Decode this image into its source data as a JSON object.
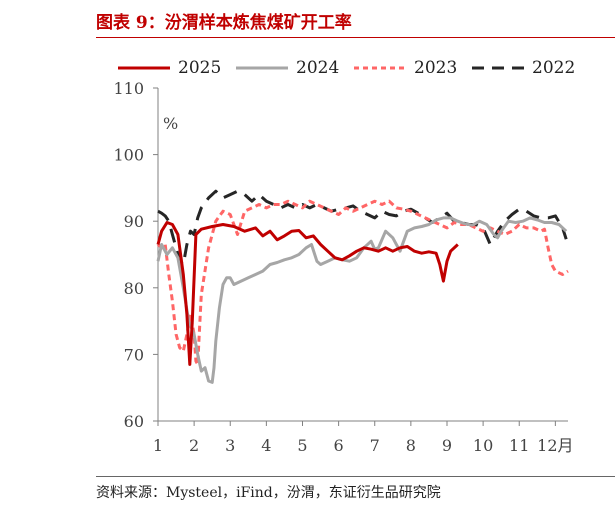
{
  "figure": {
    "title": "图表 9：汾渭样本炼焦煤矿开工率",
    "source": "资料来源：Mysteel，iFind，汾渭，东证衍生品研究院"
  },
  "chart_data": {
    "type": "line",
    "unit_label": "%",
    "ylim": [
      60,
      110
    ],
    "y_ticks": [
      60,
      70,
      80,
      90,
      100,
      110
    ],
    "xlim": [
      1,
      12.35
    ],
    "x_ticks": [
      1,
      2,
      3,
      4,
      5,
      6,
      7,
      8,
      9,
      10,
      11,
      12
    ],
    "x_tick_labels": [
      "1",
      "2",
      "3",
      "4",
      "5",
      "6",
      "7",
      "8",
      "9",
      "10",
      "11",
      "12月"
    ],
    "legend_position": "top",
    "grid": false,
    "series": [
      {
        "name": "2025",
        "color": "#c00000",
        "style": "solid",
        "x": [
          1.0,
          1.1,
          1.25,
          1.4,
          1.55,
          1.7,
          1.8,
          1.88,
          1.95,
          2.05,
          2.2,
          2.5,
          2.8,
          3.1,
          3.4,
          3.7,
          3.9,
          4.1,
          4.3,
          4.5,
          4.7,
          4.9,
          5.1,
          5.3,
          5.5,
          5.7,
          5.9,
          6.1,
          6.3,
          6.5,
          6.7,
          6.9,
          7.1,
          7.3,
          7.5,
          7.7,
          7.9,
          8.1,
          8.3,
          8.5,
          8.7,
          8.8,
          8.9,
          9.0,
          9.1,
          9.3
        ],
        "y": [
          86.5,
          88.5,
          89.8,
          89.5,
          88.0,
          82.0,
          76.0,
          68.5,
          75.0,
          88.0,
          88.8,
          89.2,
          89.5,
          89.2,
          88.5,
          89.0,
          87.8,
          88.5,
          87.2,
          87.8,
          88.5,
          88.6,
          87.5,
          87.8,
          86.5,
          85.5,
          84.5,
          84.2,
          84.8,
          85.5,
          86.0,
          85.8,
          85.5,
          86.0,
          85.5,
          86.0,
          86.2,
          85.5,
          85.2,
          85.4,
          85.2,
          83.5,
          81.0,
          84.0,
          85.5,
          86.5
        ]
      },
      {
        "name": "2024",
        "color": "#a6a6a6",
        "style": "solid",
        "x": [
          1.0,
          1.1,
          1.25,
          1.4,
          1.55,
          1.7,
          1.85,
          2.0,
          2.1,
          2.2,
          2.3,
          2.4,
          2.5,
          2.55,
          2.6,
          2.7,
          2.8,
          2.9,
          3.0,
          3.1,
          3.3,
          3.5,
          3.7,
          3.9,
          4.1,
          4.3,
          4.5,
          4.7,
          4.9,
          5.1,
          5.25,
          5.4,
          5.5,
          5.7,
          5.9,
          6.1,
          6.3,
          6.5,
          6.7,
          6.9,
          7.0,
          7.1,
          7.3,
          7.5,
          7.7,
          7.9,
          8.1,
          8.3,
          8.5,
          8.7,
          8.9,
          9.1,
          9.3,
          9.5,
          9.7,
          9.9,
          10.1,
          10.3,
          10.4,
          10.5,
          10.7,
          10.9,
          11.1,
          11.3,
          11.5,
          11.7,
          11.9,
          12.1,
          12.3
        ],
        "y": [
          84.0,
          86.5,
          85.0,
          86.0,
          84.5,
          80.0,
          75.0,
          73.0,
          70.0,
          67.5,
          68.0,
          66.0,
          65.8,
          68.0,
          72.0,
          77.0,
          80.5,
          81.5,
          81.5,
          80.5,
          81.0,
          81.5,
          82.0,
          82.5,
          83.5,
          83.8,
          84.2,
          84.5,
          85.0,
          86.0,
          86.5,
          84.0,
          83.5,
          84.0,
          84.5,
          84.2,
          84.0,
          84.5,
          86.0,
          87.0,
          85.8,
          86.0,
          88.5,
          87.5,
          85.5,
          88.5,
          89.0,
          89.2,
          89.5,
          90.2,
          90.5,
          90.5,
          90.0,
          89.6,
          89.4,
          90.0,
          89.5,
          88.0,
          87.5,
          88.5,
          90.0,
          89.8,
          90.0,
          90.5,
          90.2,
          89.8,
          89.8,
          89.5,
          88.5
        ]
      },
      {
        "name": "2023",
        "color": "#ff6666",
        "style": "dashed",
        "x": [
          1.0,
          1.1,
          1.2,
          1.3,
          1.4,
          1.5,
          1.6,
          1.7,
          1.8,
          1.9,
          2.0,
          2.05,
          2.1,
          2.2,
          2.4,
          2.6,
          2.8,
          3.0,
          3.2,
          3.4,
          3.6,
          3.8,
          4.0,
          4.2,
          4.4,
          4.6,
          4.8,
          5.0,
          5.2,
          5.4,
          5.6,
          5.8,
          6.0,
          6.2,
          6.4,
          6.6,
          6.8,
          7.0,
          7.2,
          7.4,
          7.6,
          7.8,
          8.0,
          8.2,
          8.4,
          8.6,
          8.8,
          9.0,
          9.2,
          9.4,
          9.6,
          9.8,
          10.0,
          10.2,
          10.4,
          10.6,
          10.8,
          11.0,
          11.2,
          11.4,
          11.6,
          11.7,
          11.8,
          11.9,
          12.0,
          12.2,
          12.35
        ],
        "y": [
          86.5,
          86.0,
          86.5,
          82.0,
          78.0,
          73.0,
          71.0,
          70.5,
          73.0,
          76.0,
          73.0,
          69.0,
          68.5,
          79.0,
          86.0,
          90.0,
          91.5,
          91.0,
          88.0,
          91.5,
          92.0,
          92.5,
          92.0,
          92.5,
          92.5,
          93.0,
          92.5,
          92.0,
          93.0,
          92.5,
          92.0,
          91.5,
          91.0,
          92.0,
          91.5,
          92.0,
          92.5,
          93.0,
          92.5,
          93.0,
          92.0,
          91.8,
          91.5,
          91.0,
          90.5,
          90.0,
          89.5,
          89.0,
          89.8,
          89.5,
          89.5,
          89.0,
          88.5,
          89.0,
          88.5,
          88.0,
          88.5,
          89.5,
          89.0,
          89.0,
          88.5,
          88.8,
          86.0,
          83.5,
          82.5,
          82.0,
          82.5
        ]
      },
      {
        "name": "2022",
        "color": "#262626",
        "style": "dashed",
        "x": [
          1.0,
          1.1,
          1.2,
          1.3,
          1.4,
          1.5,
          1.6,
          1.7,
          1.8,
          1.9,
          2.0,
          2.1,
          2.2,
          2.4,
          2.6,
          2.7,
          2.8,
          3.0,
          3.2,
          3.4,
          3.6,
          3.8,
          4.0,
          4.2,
          4.4,
          4.6,
          4.8,
          5.0,
          5.2,
          5.4,
          5.6,
          5.8,
          6.0,
          6.2,
          6.4,
          6.6,
          6.8,
          7.0,
          7.2,
          7.4,
          7.6,
          7.8,
          8.0,
          8.2,
          8.4,
          8.6,
          8.8,
          9.0,
          9.2,
          9.4,
          9.6,
          9.8,
          10.0,
          10.2,
          10.4,
          10.6,
          10.8,
          11.0,
          11.2,
          11.4,
          11.6,
          11.8,
          12.0,
          12.2,
          12.3
        ],
        "y": [
          91.5,
          91.2,
          90.8,
          90.0,
          88.0,
          86.0,
          84.0,
          83.5,
          86.5,
          88.5,
          88.0,
          90.5,
          92.0,
          93.5,
          94.5,
          94.0,
          93.5,
          94.0,
          94.5,
          94.0,
          93.0,
          94.0,
          93.0,
          92.5,
          92.0,
          92.5,
          92.0,
          92.5,
          92.0,
          92.5,
          92.0,
          91.5,
          91.8,
          92.0,
          92.3,
          91.5,
          91.0,
          90.5,
          91.5,
          91.0,
          90.8,
          91.5,
          91.8,
          91.2,
          90.5,
          89.8,
          90.5,
          91.2,
          90.0,
          89.8,
          89.5,
          89.5,
          89.0,
          86.5,
          88.5,
          90.0,
          91.0,
          91.8,
          91.5,
          90.8,
          90.5,
          90.5,
          90.8,
          89.0,
          87.3
        ]
      }
    ]
  }
}
